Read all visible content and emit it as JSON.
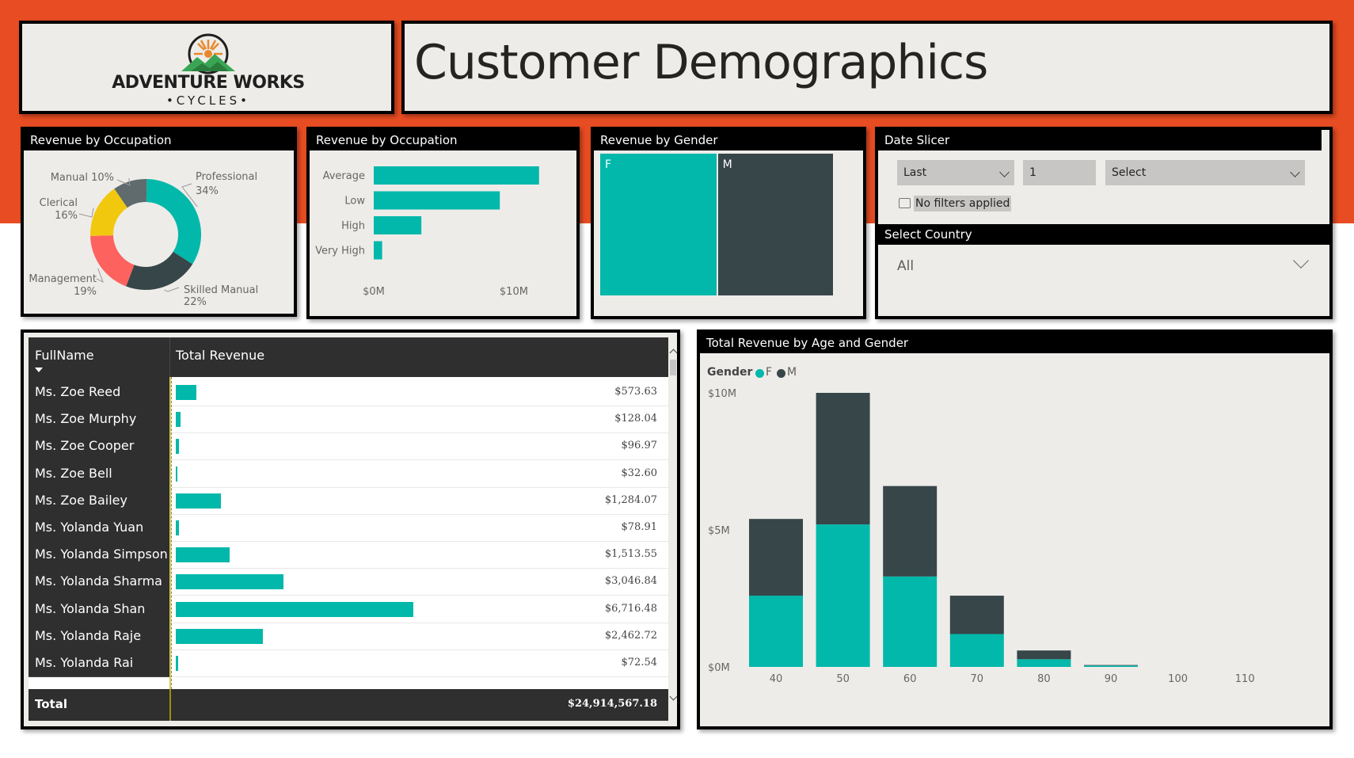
{
  "header": {
    "logo_line1": "ADVENTURE WORKS",
    "logo_line2": "•CYCLES•",
    "title": "Customer Demographics"
  },
  "colors": {
    "accent_orange": "#e84c22",
    "teal": "#01b8aa",
    "dark": "#374649",
    "yellow": "#f2c80f",
    "coral": "#fd625e",
    "gray": "#5f6b6d",
    "panel_bg": "#eeece9"
  },
  "slicer": {
    "title": "Date Slicer",
    "relative_label": "Last",
    "count_value": "1",
    "unit_placeholder": "Select",
    "status_text": "No filters applied",
    "country_title": "Select Country",
    "country_value": "All"
  },
  "table": {
    "col_name": "FullName",
    "col_revenue": "Total Revenue",
    "total_label": "Total",
    "total_value": "$24,914,567.18",
    "bar_max": 6716.48,
    "rows": [
      {
        "name": "Ms. Zoe Reed",
        "value": 573.63,
        "label": "$573.63"
      },
      {
        "name": "Ms. Zoe Murphy",
        "value": 128.04,
        "label": "$128.04"
      },
      {
        "name": "Ms. Zoe Cooper",
        "value": 96.97,
        "label": "$96.97"
      },
      {
        "name": "Ms. Zoe Bell",
        "value": 32.6,
        "label": "$32.60"
      },
      {
        "name": "Ms. Zoe Bailey",
        "value": 1284.07,
        "label": "$1,284.07"
      },
      {
        "name": "Ms. Yolanda Yuan",
        "value": 78.91,
        "label": "$78.91"
      },
      {
        "name": "Ms. Yolanda Simpson",
        "value": 1513.55,
        "label": "$1,513.55"
      },
      {
        "name": "Ms. Yolanda Sharma",
        "value": 3046.84,
        "label": "$3,046.84"
      },
      {
        "name": "Ms. Yolanda Shan",
        "value": 6716.48,
        "label": "$6,716.48"
      },
      {
        "name": "Ms. Yolanda Raje",
        "value": 2462.72,
        "label": "$2,462.72"
      },
      {
        "name": "Ms. Yolanda Rai",
        "value": 72.54,
        "label": "$72.54"
      }
    ]
  },
  "chart_data": [
    {
      "type": "pie",
      "title": "Revenue by Occupation",
      "variant": "donut",
      "slices": [
        {
          "label": "Professional",
          "percent": 34,
          "pct_label": "34%",
          "color": "#01b8aa"
        },
        {
          "label": "Skilled Manual",
          "percent": 22,
          "pct_label": "22%",
          "color": "#374649"
        },
        {
          "label": "Management",
          "percent": 19,
          "pct_label": "19%",
          "color": "#fd625e"
        },
        {
          "label": "Clerical",
          "percent": 16,
          "pct_label": "16%",
          "color": "#f2c80f"
        },
        {
          "label": "Manual",
          "percent": 10,
          "pct_label": "10%",
          "color": "#5f6b6d"
        }
      ]
    },
    {
      "type": "bar",
      "orientation": "horizontal",
      "title": "Revenue by Occupation",
      "categories": [
        "Average",
        "Low",
        "High",
        "Very High"
      ],
      "values": [
        11.8,
        9.0,
        3.4,
        0.6
      ],
      "xlim": [
        0,
        13
      ],
      "ticks": [
        {
          "value": 0,
          "label": "$0M"
        },
        {
          "value": 10,
          "label": "$10M"
        }
      ],
      "color": "#01b8aa"
    },
    {
      "type": "treemap",
      "title": "Revenue by Gender",
      "tiles": [
        {
          "label": "F",
          "value": 50.2,
          "color": "#01b8aa"
        },
        {
          "label": "M",
          "value": 49.8,
          "color": "#374649"
        }
      ]
    },
    {
      "type": "bar",
      "stacked": true,
      "title": "Total Revenue by Age and Gender",
      "legend_title": "Gender",
      "legend_position": "top-left",
      "x": [
        40,
        50,
        60,
        70,
        80,
        90,
        100,
        110
      ],
      "series": [
        {
          "name": "F",
          "color": "#01b8aa",
          "values": [
            2.6,
            5.2,
            3.3,
            1.2,
            0.28,
            0.05,
            0,
            0
          ]
        },
        {
          "name": "M",
          "color": "#374649",
          "values": [
            2.8,
            4.8,
            3.3,
            1.4,
            0.32,
            0.02,
            0,
            0
          ]
        }
      ],
      "ylim": [
        0,
        10
      ],
      "y_ticks": [
        {
          "value": 0,
          "label": "$0M"
        },
        {
          "value": 5,
          "label": "$5M"
        },
        {
          "value": 10,
          "label": "$10M"
        }
      ]
    }
  ]
}
